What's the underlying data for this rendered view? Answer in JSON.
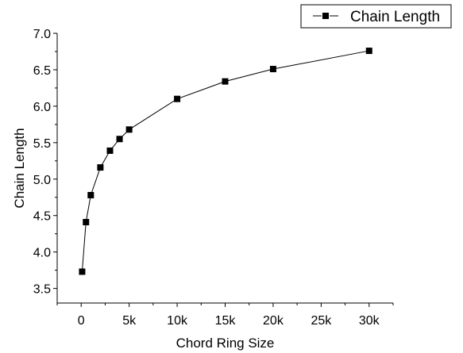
{
  "chart_data": {
    "type": "line",
    "xlabel": "Chord Ring Size",
    "ylabel": "Chain Length",
    "xlim": [
      -2500,
      32500
    ],
    "ylim": [
      3.3,
      7.0
    ],
    "x_ticks": [
      0,
      5000,
      10000,
      15000,
      20000,
      25000,
      30000
    ],
    "x_tick_labels": [
      "0",
      "5k",
      "10k",
      "15k",
      "20k",
      "25k",
      "30k"
    ],
    "y_ticks": [
      3.5,
      4.0,
      4.5,
      5.0,
      5.5,
      6.0,
      6.5,
      7.0
    ],
    "y_tick_labels": [
      "3.5",
      "4.0",
      "4.5",
      "5.0",
      "5.5",
      "6.0",
      "6.5",
      "7.0"
    ],
    "grid": false,
    "legend_position": "top-right",
    "series": [
      {
        "name": "Chain Length",
        "x": [
          100,
          500,
          1000,
          2000,
          3000,
          4000,
          5000,
          10000,
          15000,
          20000,
          30000
        ],
        "y": [
          3.73,
          4.41,
          4.78,
          5.16,
          5.39,
          5.55,
          5.68,
          6.1,
          6.34,
          6.51,
          6.76
        ],
        "marker": "square",
        "color": "#000000"
      }
    ]
  }
}
